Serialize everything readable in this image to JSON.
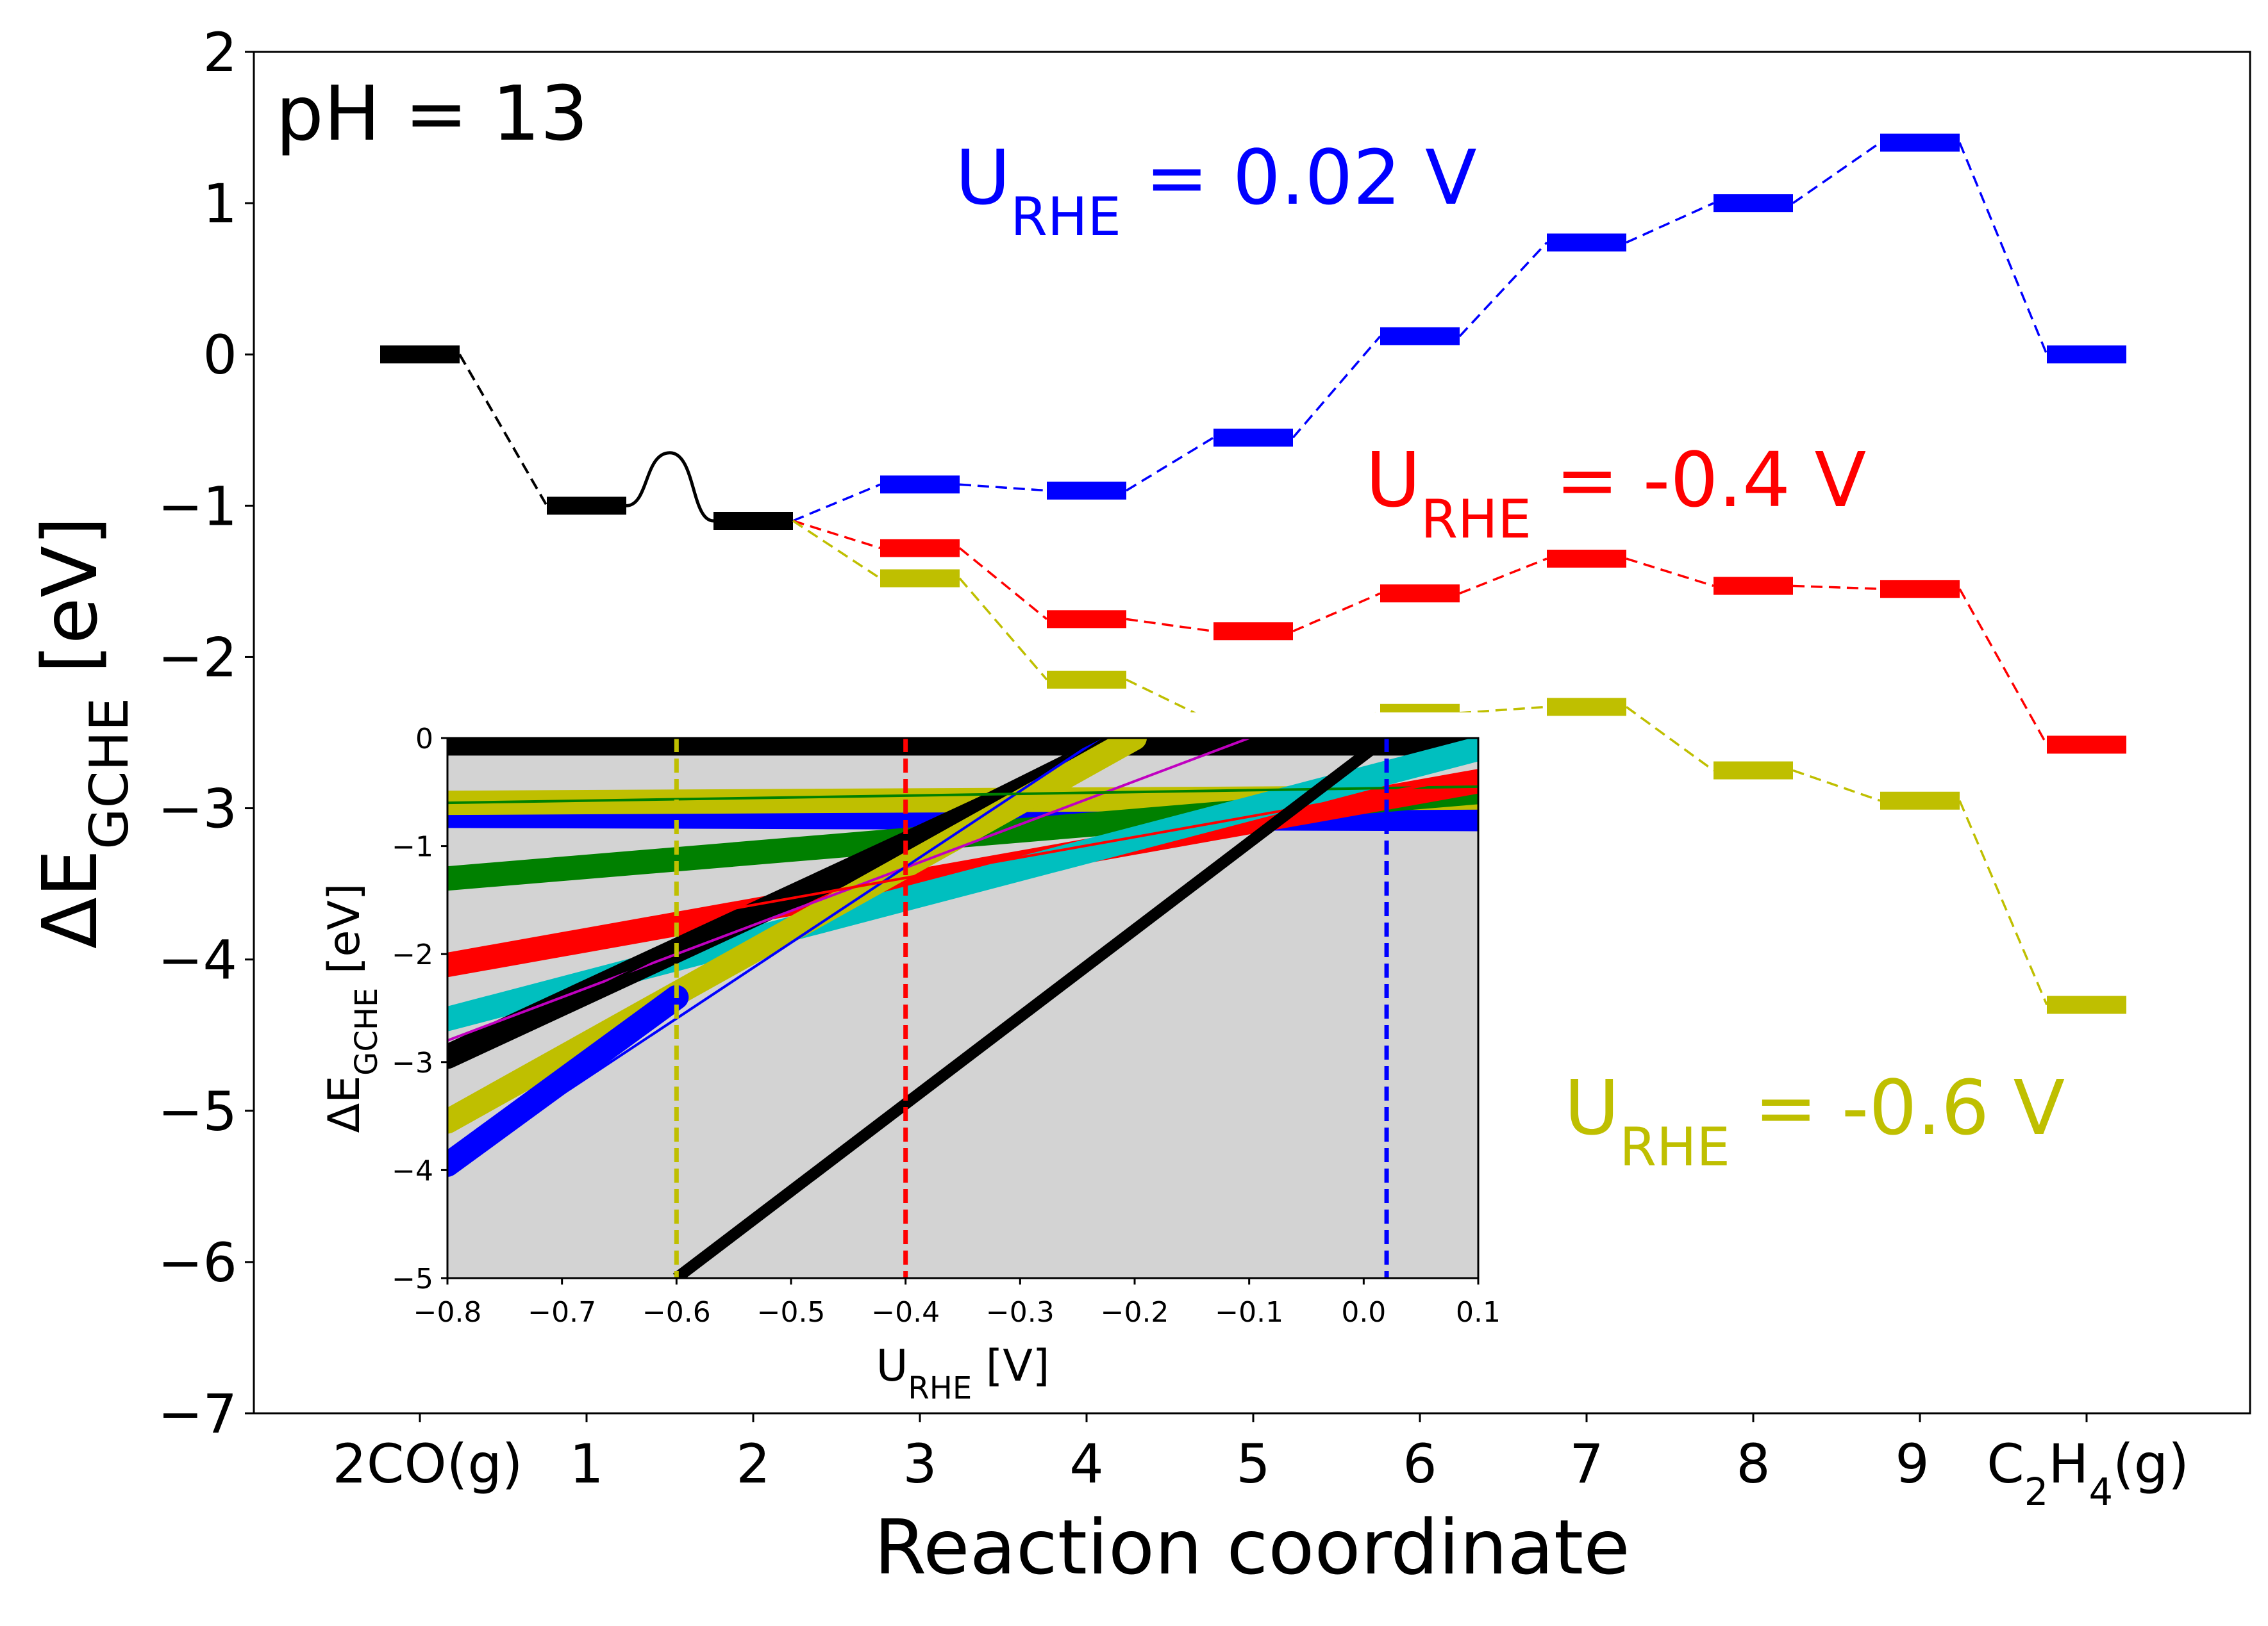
{
  "chart_data": [
    {
      "type": "energy-diagram",
      "annotation": "pH = 13",
      "xlabel": "Reaction coordinate",
      "ylabel_main": "ΔE",
      "ylabel_sub": "GCHE",
      "ylabel_tail": " [eV]",
      "ylim": [
        -7,
        2
      ],
      "yticks": [
        2,
        1,
        0,
        -1,
        -2,
        -3,
        -4,
        -5,
        -6,
        -7
      ],
      "ytick_labels": [
        "2",
        "1",
        "0",
        "−1",
        "−2",
        "−3",
        "−4",
        "−5",
        "−6",
        "−7"
      ],
      "categories": [
        "2CO(g)",
        "1",
        "2",
        "3",
        "4",
        "5",
        "6",
        "7",
        "8",
        "9",
        "C2H4(g)"
      ],
      "category_labels": [
        {
          "main": "2CO(g)"
        },
        {
          "main": "1"
        },
        {
          "main": "2"
        },
        {
          "main": "3"
        },
        {
          "main": "4"
        },
        {
          "main": "5"
        },
        {
          "main": "6"
        },
        {
          "main": "7"
        },
        {
          "main": "8"
        },
        {
          "main": "9"
        },
        {
          "main": "C",
          "sub1": "2",
          "mid": "H",
          "sub2": "4",
          "tail": "(g)"
        }
      ],
      "common_path": {
        "color": "#000000",
        "x": [
          0,
          1,
          2
        ],
        "values": [
          0.0,
          -1.0,
          -1.1
        ],
        "barrier_peak": -0.65
      },
      "series": [
        {
          "label_main": "U",
          "label_sub": "RHE",
          "label_tail": " = 0.02 V",
          "color": "#0000ff",
          "x": [
            3,
            4,
            5,
            6,
            7,
            8,
            9,
            10
          ],
          "values": [
            -0.86,
            -0.9,
            -0.55,
            0.12,
            0.74,
            1.0,
            1.4,
            0.0
          ]
        },
        {
          "label_main": "U",
          "label_sub": "RHE",
          "label_tail": " = -0.4 V",
          "color": "#ff0000",
          "x": [
            3,
            4,
            5,
            6,
            7,
            8,
            9,
            10
          ],
          "values": [
            -1.28,
            -1.75,
            -1.83,
            -1.58,
            -1.35,
            -1.53,
            -1.55,
            -2.58
          ]
        },
        {
          "label_main": "U",
          "label_sub": "RHE",
          "label_tail": " = -0.6 V",
          "color": "#bfbf00",
          "x": [
            3,
            4,
            5,
            6,
            7,
            8,
            9,
            10
          ],
          "values": [
            -1.48,
            -2.15,
            -2.43,
            -2.37,
            -2.33,
            -2.75,
            -2.95,
            -4.3
          ]
        }
      ]
    },
    {
      "type": "line",
      "xlabel_main": "U",
      "xlabel_sub": "RHE",
      "xlabel_tail": " [V]",
      "ylabel_main": "ΔE",
      "ylabel_sub": "GCHE",
      "ylabel_tail": " [eV]",
      "xlim": [
        -0.8,
        0.1
      ],
      "ylim": [
        -5,
        0
      ],
      "xticks": [
        -0.8,
        -0.7,
        -0.6,
        -0.5,
        -0.4,
        -0.3,
        -0.2,
        -0.1,
        0.0,
        0.1
      ],
      "xtick_labels": [
        "−0.8",
        "−0.7",
        "−0.6",
        "−0.5",
        "−0.4",
        "−0.3",
        "−0.2",
        "−0.1",
        "0.0",
        "0.1"
      ],
      "yticks": [
        0,
        -1,
        -2,
        -3,
        -4,
        -5
      ],
      "ytick_labels": [
        "0",
        "−1",
        "−2",
        "−3",
        "−4",
        "−5"
      ],
      "background": "#d3d3d3",
      "grid": false,
      "vlines": [
        {
          "x": -0.6,
          "color": "#bfbf00"
        },
        {
          "x": -0.4,
          "color": "#ff0000"
        },
        {
          "x": 0.02,
          "color": "#0000ff"
        }
      ],
      "series": [
        {
          "color": "#000000",
          "role": "points",
          "x": [
            -0.8,
            0.1
          ],
          "values": [
            -0.05,
            -0.05
          ]
        },
        {
          "color": "#0000ff",
          "role": "points",
          "x": [
            -0.8,
            0.1
          ],
          "values": [
            -0.72,
            -0.75
          ]
        },
        {
          "color": "#bfbf00",
          "role": "points",
          "x": [
            -0.8,
            0.1
          ],
          "values": [
            -0.6,
            -0.55
          ]
        },
        {
          "color": "#008000",
          "role": "points",
          "x": [
            -0.8,
            0.1
          ],
          "values": [
            -1.3,
            -0.5
          ]
        },
        {
          "color": "#ff0000",
          "role": "points",
          "x": [
            -0.8,
            0.1
          ],
          "values": [
            -2.1,
            -0.4
          ]
        },
        {
          "color": "#00bfbf",
          "role": "points",
          "x": [
            -0.8,
            0.1
          ],
          "values": [
            -2.6,
            -0.1
          ]
        },
        {
          "color": "#000000",
          "role": "points",
          "x": [
            -0.8,
            -0.2
          ],
          "values": [
            -2.95,
            0.0
          ]
        },
        {
          "color": "#bfbf00",
          "role": "points",
          "x": [
            -0.8,
            -0.2
          ],
          "values": [
            -3.55,
            0.0
          ]
        },
        {
          "color": "#0000ff",
          "role": "points",
          "x": [
            -0.8,
            -0.6
          ],
          "values": [
            -3.95,
            -2.4
          ]
        },
        {
          "color": "#c000c0",
          "role": "fit",
          "x": [
            -0.8,
            -0.1
          ],
          "values": [
            -2.8,
            0.0
          ]
        },
        {
          "color": "#0000ff",
          "role": "fit",
          "x": [
            -0.8,
            -0.23
          ],
          "values": [
            -4.0,
            0.0
          ]
        },
        {
          "color": "#000000",
          "role": "fit",
          "x": [
            -0.8,
            -0.23
          ],
          "values": [
            -3.0,
            0.0
          ]
        },
        {
          "color": "#008000",
          "role": "fit",
          "x": [
            -0.8,
            0.1
          ],
          "values": [
            -0.6,
            -0.45
          ]
        },
        {
          "color": "#ff0000",
          "role": "fit",
          "x": [
            -0.8,
            0.1
          ],
          "values": [
            -2.05,
            -0.35
          ]
        },
        {
          "color": "#000000",
          "role": "thick",
          "x": [
            -0.6,
            0.02
          ],
          "values": [
            -5.0,
            0.0
          ]
        }
      ]
    }
  ]
}
